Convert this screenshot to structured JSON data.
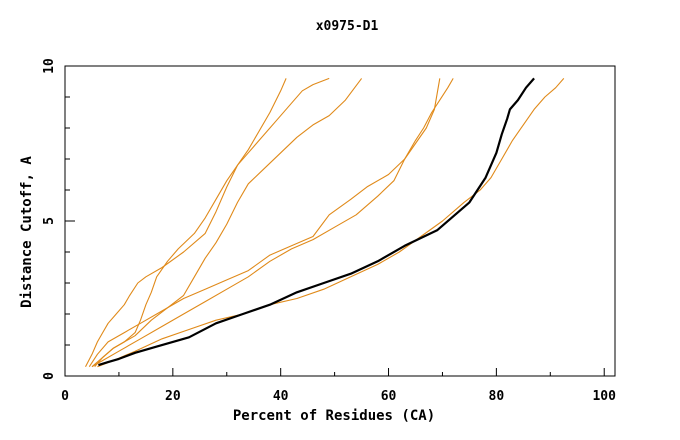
{
  "chart_data": {
    "type": "line",
    "title": "x0975-D1",
    "xlabel": "Percent of Residues (CA)",
    "ylabel": "Distance Cutoff, A",
    "xlim": [
      0,
      102
    ],
    "ylim": [
      0,
      10
    ],
    "xticks": [
      "0",
      "20",
      "40",
      "60",
      "80",
      "100"
    ],
    "yticks": [
      "0",
      "5",
      "10"
    ],
    "grid": false,
    "colors": {
      "highlight": "#000000",
      "others": "#e08a1a"
    },
    "series": [
      {
        "highlight": true,
        "color": "#000000",
        "points": [
          [
            6.2,
            0.35
          ],
          [
            8,
            0.45
          ],
          [
            10,
            0.55
          ],
          [
            13,
            0.75
          ],
          [
            17,
            0.95
          ],
          [
            23,
            1.25
          ],
          [
            28,
            1.7
          ],
          [
            33,
            2.0
          ],
          [
            38,
            2.3
          ],
          [
            43,
            2.7
          ],
          [
            48,
            3.0
          ],
          [
            53,
            3.3
          ],
          [
            58,
            3.7
          ],
          [
            63,
            4.2
          ],
          [
            69,
            4.7
          ],
          [
            75,
            5.6
          ],
          [
            78,
            6.4
          ],
          [
            80,
            7.2
          ],
          [
            81,
            7.8
          ],
          [
            82,
            8.3
          ],
          [
            82.5,
            8.6
          ],
          [
            84,
            8.9
          ],
          [
            85.5,
            9.3
          ],
          [
            87,
            9.6
          ]
        ]
      },
      {
        "color": "#e08a1a",
        "points": [
          [
            3.8,
            0.3
          ],
          [
            5,
            0.7
          ],
          [
            6,
            1.1
          ],
          [
            7,
            1.4
          ],
          [
            8,
            1.7
          ],
          [
            9.5,
            2.0
          ],
          [
            11,
            2.3
          ],
          [
            12,
            2.6
          ],
          [
            13.5,
            3.0
          ],
          [
            15,
            3.2
          ],
          [
            18,
            3.5
          ],
          [
            22,
            4.0
          ],
          [
            26,
            4.6
          ],
          [
            28,
            5.3
          ],
          [
            30,
            6.1
          ],
          [
            32,
            6.8
          ],
          [
            34,
            7.3
          ],
          [
            36,
            7.9
          ],
          [
            38,
            8.5
          ],
          [
            40,
            9.2
          ],
          [
            41,
            9.6
          ]
        ]
      },
      {
        "color": "#e08a1a",
        "points": [
          [
            5,
            0.3
          ],
          [
            7,
            0.6
          ],
          [
            9,
            0.9
          ],
          [
            11,
            1.1
          ],
          [
            13,
            1.4
          ],
          [
            14,
            1.8
          ],
          [
            15,
            2.3
          ],
          [
            16,
            2.7
          ],
          [
            17,
            3.2
          ],
          [
            19,
            3.7
          ],
          [
            21,
            4.1
          ],
          [
            24,
            4.6
          ],
          [
            26,
            5.1
          ],
          [
            28,
            5.7
          ],
          [
            30,
            6.3
          ],
          [
            32,
            6.8
          ],
          [
            34,
            7.2
          ],
          [
            36,
            7.6
          ],
          [
            39,
            8.2
          ],
          [
            42,
            8.8
          ],
          [
            44,
            9.2
          ],
          [
            46,
            9.4
          ],
          [
            49,
            9.6
          ]
        ]
      },
      {
        "color": "#e08a1a",
        "points": [
          [
            5.5,
            0.3
          ],
          [
            7,
            0.6
          ],
          [
            9,
            0.9
          ],
          [
            11,
            1.1
          ],
          [
            13,
            1.3
          ],
          [
            16,
            1.8
          ],
          [
            19,
            2.2
          ],
          [
            22,
            2.6
          ],
          [
            24,
            3.2
          ],
          [
            26,
            3.8
          ],
          [
            28,
            4.3
          ],
          [
            30,
            4.9
          ],
          [
            32,
            5.6
          ],
          [
            34,
            6.2
          ],
          [
            37,
            6.7
          ],
          [
            40,
            7.2
          ],
          [
            43,
            7.7
          ],
          [
            46,
            8.1
          ],
          [
            49,
            8.4
          ],
          [
            52,
            8.9
          ],
          [
            55,
            9.6
          ]
        ]
      },
      {
        "color": "#e08a1a",
        "points": [
          [
            4.5,
            0.3
          ],
          [
            6,
            0.7
          ],
          [
            8,
            1.1
          ],
          [
            11,
            1.4
          ],
          [
            14,
            1.7
          ],
          [
            18,
            2.1
          ],
          [
            22,
            2.5
          ],
          [
            26,
            2.8
          ],
          [
            30,
            3.1
          ],
          [
            34,
            3.4
          ],
          [
            38,
            3.9
          ],
          [
            42,
            4.2
          ],
          [
            46,
            4.5
          ],
          [
            49,
            5.2
          ],
          [
            53,
            5.7
          ],
          [
            56,
            6.1
          ],
          [
            60,
            6.5
          ],
          [
            63,
            7.0
          ],
          [
            65,
            7.5
          ],
          [
            67,
            8.0
          ],
          [
            68.5,
            8.6
          ],
          [
            69,
            9.1
          ],
          [
            69.5,
            9.6
          ]
        ]
      },
      {
        "color": "#e08a1a",
        "points": [
          [
            5,
            0.3
          ],
          [
            7,
            0.5
          ],
          [
            10,
            0.8
          ],
          [
            14,
            1.2
          ],
          [
            18,
            1.6
          ],
          [
            22,
            2.0
          ],
          [
            26,
            2.4
          ],
          [
            30,
            2.8
          ],
          [
            34,
            3.2
          ],
          [
            38,
            3.7
          ],
          [
            42,
            4.1
          ],
          [
            46,
            4.4
          ],
          [
            50,
            4.8
          ],
          [
            54,
            5.2
          ],
          [
            58,
            5.8
          ],
          [
            61,
            6.3
          ],
          [
            63,
            7.0
          ],
          [
            65,
            7.6
          ],
          [
            66.5,
            8.0
          ],
          [
            68,
            8.5
          ],
          [
            69.5,
            8.9
          ],
          [
            71,
            9.3
          ],
          [
            72,
            9.6
          ]
        ]
      },
      {
        "color": "#e08a1a",
        "points": [
          [
            6,
            0.3
          ],
          [
            9,
            0.5
          ],
          [
            13,
            0.8
          ],
          [
            18,
            1.2
          ],
          [
            23,
            1.5
          ],
          [
            28,
            1.8
          ],
          [
            33,
            2.0
          ],
          [
            38,
            2.3
          ],
          [
            43,
            2.5
          ],
          [
            48,
            2.8
          ],
          [
            53,
            3.2
          ],
          [
            58,
            3.6
          ],
          [
            62,
            4.0
          ],
          [
            66,
            4.5
          ],
          [
            70,
            5.0
          ],
          [
            74,
            5.6
          ],
          [
            77,
            6.0
          ],
          [
            79,
            6.4
          ],
          [
            81,
            7.0
          ],
          [
            83,
            7.6
          ],
          [
            85,
            8.1
          ],
          [
            87,
            8.6
          ],
          [
            89,
            9.0
          ],
          [
            91,
            9.3
          ],
          [
            92.5,
            9.6
          ]
        ]
      }
    ]
  }
}
